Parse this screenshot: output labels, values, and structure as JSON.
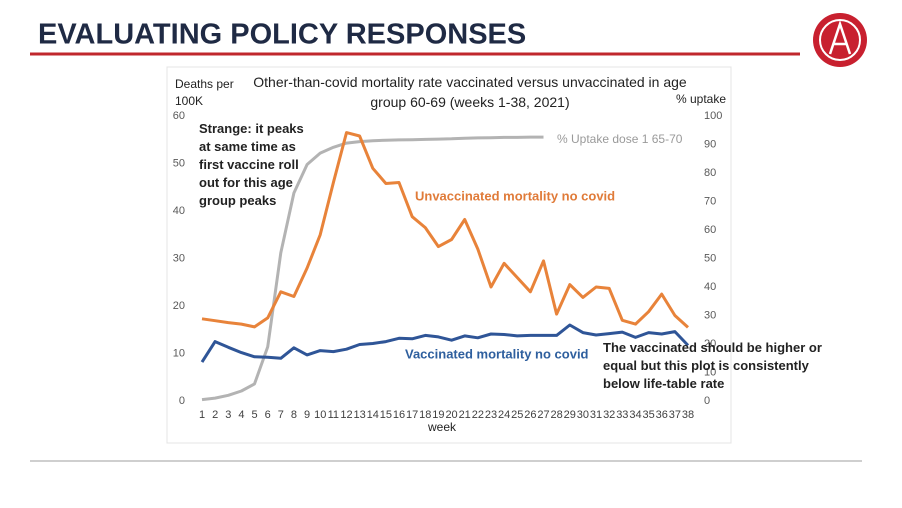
{
  "header": {
    "title": "EVALUATING POLICY RESPONSES"
  },
  "chart_data": {
    "type": "line",
    "title": "Other-than-covid mortality rate vaccinated versus unvaccinated in age group 60-69  (weeks 1-38, 2021)",
    "ylabel": "Deaths per 100K",
    "y2label": "% uptake",
    "xlabel": "week",
    "categories": [
      1,
      2,
      3,
      4,
      5,
      6,
      7,
      8,
      9,
      10,
      11,
      12,
      13,
      14,
      15,
      16,
      17,
      18,
      19,
      20,
      21,
      22,
      23,
      24,
      25,
      26,
      27,
      28,
      29,
      30,
      31,
      32,
      33,
      34,
      35,
      36,
      37,
      38
    ],
    "ylim": [
      0,
      60
    ],
    "yticks": [
      0,
      10,
      20,
      30,
      40,
      50,
      60
    ],
    "y2lim": [
      0,
      100
    ],
    "y2ticks": [
      0,
      10,
      20,
      30,
      40,
      50,
      60,
      70,
      80,
      90,
      100
    ],
    "grid": false,
    "series": [
      {
        "name": "Unvaccinated mortality no covid",
        "color": "#e8833a",
        "values": [
          17.3,
          16.9,
          16.5,
          16.2,
          15.6,
          17.5,
          23,
          22,
          28,
          35,
          46,
          56.5,
          55.8,
          49,
          45.8,
          46,
          38.8,
          36.5,
          32.5,
          34,
          38.2,
          32,
          24,
          29,
          26,
          23,
          29.5,
          18.3,
          24.5,
          21.8,
          24,
          23.7,
          17,
          16.2,
          18.8,
          22.5,
          18,
          15.5
        ]
      },
      {
        "name": "Vaccinated mortality no covid",
        "color": "#2f5597",
        "values": [
          8.2,
          12.5,
          11.3,
          10.2,
          9.3,
          9.2,
          9,
          11.2,
          9.7,
          10.6,
          10.4,
          10.9,
          11.9,
          12.1,
          12.5,
          13.2,
          13.1,
          13.8,
          13.5,
          12.8,
          13.7,
          13.3,
          14.1,
          14,
          13.7,
          13.8,
          13.8,
          13.8,
          16,
          14.4,
          13.9,
          14.2,
          14.5,
          13.4,
          14.4,
          14.1,
          14.6,
          11.7
        ]
      },
      {
        "name": "% Uptake dose 1 65-70",
        "color": "#b3b3b3",
        "axis": "y2",
        "values": [
          0.5,
          1,
          2,
          3.5,
          6,
          19,
          52,
          73,
          83,
          87,
          89,
          90.5,
          91,
          91.3,
          91.5,
          91.6,
          91.7,
          91.8,
          91.9,
          92,
          92.2,
          92.3,
          92.4,
          92.5,
          92.5,
          92.6,
          92.6,
          null,
          null,
          null,
          null,
          null,
          null,
          null,
          null,
          null,
          null,
          null
        ]
      }
    ],
    "annotations": [
      "Strange: it peaks at same time as first vaccine roll out for this age group peaks",
      "The vaccinated should be higher or equal but this plot is consistently below life-table rate"
    ]
  }
}
